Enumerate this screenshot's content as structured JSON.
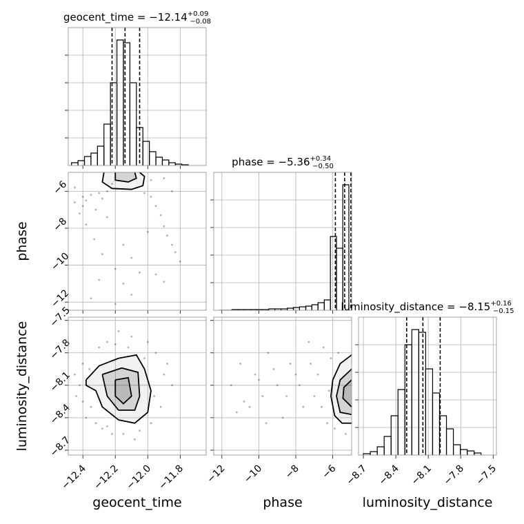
{
  "chart_data": [
    {
      "type": "histogram",
      "title": "geocent_time = −12.14",
      "title_upper": "+0.09",
      "title_lower": "−0.08",
      "xlim": [
        -12.49,
        -11.64
      ],
      "xticks": [
        -12.4,
        -12.2,
        -12.0,
        -11.8
      ],
      "ylim": [
        0,
        200
      ],
      "yticks": [
        40,
        80,
        120,
        160
      ],
      "bins": [
        -12.47,
        -12.43,
        -12.39,
        -12.35,
        -12.31,
        -12.27,
        -12.23,
        -12.19,
        -12.15,
        -12.11,
        -12.07,
        -12.03,
        -11.99,
        -11.95,
        -11.91,
        -11.87,
        -11.83,
        -11.79,
        -11.75
      ],
      "counts": [
        4,
        7,
        13,
        18,
        28,
        60,
        120,
        182,
        178,
        120,
        55,
        35,
        20,
        12,
        8,
        4,
        2,
        1
      ],
      "quantiles": [
        -12.22,
        -12.14,
        -12.05
      ]
    },
    {
      "type": "scatter",
      "xlim": [
        -12.49,
        -11.64
      ],
      "xticks": [
        -12.4,
        -12.2,
        -12.0,
        -11.8
      ],
      "ylim": [
        -12.44,
        -4.98
      ],
      "yticks": [
        {
          "value": -6,
          "label": "−6"
        },
        {
          "value": -8,
          "label": "−8"
        },
        {
          "value": -10,
          "label": "−10"
        },
        {
          "value": -12,
          "label": "−12"
        }
      ],
      "ylabel": "phase",
      "x": [
        -12.45,
        -12.4,
        -12.35,
        -12.3,
        -12.25,
        -12.42,
        -12.38,
        -12.33,
        -12.28,
        -12.2,
        -12.15,
        -12.1,
        -11.98,
        -11.95,
        -11.92,
        -11.9,
        -11.88,
        -11.85,
        -11.83,
        -11.8,
        -11.95,
        -12.3,
        -12.35,
        -12.2,
        -12.0,
        -11.85,
        -12.4,
        -12.25,
        -12.1,
        -11.9,
        -12.28,
        -12.15,
        -12.05,
        -11.98,
        -12.45,
        -12.38,
        -12.32,
        -12.22,
        -12.02,
        -11.9
      ],
      "y": [
        -6.6,
        -6.3,
        -6.2,
        -6.1,
        -6.0,
        -7.2,
        -7.8,
        -8.6,
        -9.4,
        -10.2,
        -11.0,
        -11.6,
        -6.3,
        -6.8,
        -7.3,
        -7.9,
        -8.4,
        -8.9,
        -9.3,
        -9.8,
        -10.5,
        -10.8,
        -11.8,
        -12.1,
        -8.2,
        -6.0,
        -6.8,
        -7.4,
        -9.6,
        -10.9,
        -6.4,
        -8.9,
        -10.4,
        -5.4,
        -5.8,
        -6.5,
        -7.0,
        -5.6,
        -6.1,
        -5.3
      ],
      "contours": [
        {
          "x": [
            -12.27,
            -12.28,
            -12.22,
            -12.1,
            -12.03,
            -12.02,
            -12.05
          ],
          "y": [
            -4.98,
            -5.5,
            -5.85,
            -5.9,
            -5.7,
            -5.2,
            -4.98
          ]
        },
        {
          "x": [
            -12.2,
            -12.2,
            -12.12,
            -12.07,
            -12.08
          ],
          "y": [
            -4.98,
            -5.4,
            -5.5,
            -5.3,
            -4.98
          ]
        }
      ]
    },
    {
      "type": "histogram",
      "title": "phase = −5.36",
      "title_upper": "+0.34",
      "title_lower": "−0.50",
      "xlim": [
        -12.44,
        -4.98
      ],
      "xticks": [
        -12,
        -10,
        -8,
        -6
      ],
      "ylim": [
        0,
        200
      ],
      "yticks": [
        40,
        80,
        120,
        160
      ],
      "bins": [
        -12.13,
        -11.8,
        -11.46,
        -11.13,
        -10.8,
        -10.46,
        -10.13,
        -9.8,
        -9.46,
        -9.13,
        -8.8,
        -8.46,
        -8.13,
        -7.8,
        -7.46,
        -7.13,
        -6.8,
        -6.46,
        -6.13,
        -5.8,
        -5.46,
        -5.13
      ],
      "counts": [
        0,
        0,
        1,
        1,
        1,
        1,
        1,
        1,
        2,
        2,
        2,
        3,
        4,
        5,
        6,
        8,
        11,
        15,
        107,
        90,
        182
      ],
      "quantiles": [
        -5.86,
        -5.36,
        -5.02
      ]
    },
    {
      "type": "scatter",
      "xlim": [
        -12.49,
        -11.64
      ],
      "xticks": [
        {
          "value": -12.4,
          "label": "−12.4"
        },
        {
          "value": -12.2,
          "label": "−12.2"
        },
        {
          "value": -12.0,
          "label": "−12.0"
        },
        {
          "value": -11.8,
          "label": "−11.8"
        }
      ],
      "ylim": [
        -8.745,
        -7.47
      ],
      "yticks": [
        {
          "value": -7.5,
          "label": "−7.5"
        },
        {
          "value": -7.8,
          "label": "−7.8"
        },
        {
          "value": -8.1,
          "label": "−8.1"
        },
        {
          "value": -8.4,
          "label": "−8.4"
        },
        {
          "value": -8.7,
          "label": "−8.7"
        }
      ],
      "xlabel": "geocent_time",
      "ylabel": "luminosity_distance",
      "x": [
        -12.45,
        -12.4,
        -12.35,
        -12.42,
        -12.3,
        -12.25,
        -12.2,
        -12.1,
        -12.0,
        -11.95,
        -11.9,
        -11.85,
        -11.92,
        -12.05,
        -12.15,
        -12.25,
        -12.38,
        -12.44,
        -12.32,
        -12.18,
        -12.08,
        -11.98,
        -11.88,
        -12.28,
        -12.12,
        -12.22,
        -12.02,
        -11.96,
        -12.36,
        -12.4
      ],
      "y": [
        -8.0,
        -7.9,
        -8.3,
        -8.1,
        -7.75,
        -7.7,
        -7.72,
        -7.65,
        -7.7,
        -7.8,
        -8.0,
        -8.1,
        -8.3,
        -8.52,
        -8.55,
        -8.48,
        -8.4,
        -8.2,
        -8.45,
        -7.6,
        -8.6,
        -8.45,
        -7.9,
        -8.5,
        -7.75,
        -8.55,
        -7.85,
        -8.2,
        -7.95,
        -8.25
      ],
      "contours": [
        {
          "x": [
            -12.38,
            -12.3,
            -12.18,
            -12.07,
            -12.02,
            -11.98,
            -12.0,
            -12.08,
            -12.18,
            -12.28,
            -12.32,
            -12.38,
            -12.38
          ],
          "y": [
            -8.05,
            -7.92,
            -7.85,
            -7.82,
            -7.95,
            -8.15,
            -8.35,
            -8.45,
            -8.42,
            -8.3,
            -8.15,
            -8.1,
            -8.05
          ]
        },
        {
          "x": [
            -12.28,
            -12.16,
            -12.06,
            -12.05,
            -12.08,
            -12.18,
            -12.25,
            -12.28
          ],
          "y": [
            -8.0,
            -7.94,
            -7.98,
            -8.2,
            -8.33,
            -8.33,
            -8.2,
            -8.0
          ]
        },
        {
          "x": [
            -12.2,
            -12.12,
            -12.1,
            -12.15,
            -12.2,
            -12.2
          ],
          "y": [
            -8.05,
            -8.03,
            -8.2,
            -8.27,
            -8.2,
            -8.05
          ]
        }
      ]
    },
    {
      "type": "scatter",
      "xlim": [
        -12.44,
        -4.98
      ],
      "xticks": [
        {
          "value": -12,
          "label": "−12"
        },
        {
          "value": -10,
          "label": "−10"
        },
        {
          "value": -8,
          "label": "−8"
        },
        {
          "value": -6,
          "label": "−6"
        }
      ],
      "ylim": [
        -8.745,
        -7.47
      ],
      "yticks": [
        -7.5,
        -7.8,
        -8.1,
        -8.4,
        -8.7
      ],
      "xlabel": "phase",
      "x": [
        -11.5,
        -11.0,
        -10.5,
        -10.2,
        -9.8,
        -9.5,
        -9.0,
        -8.7,
        -8.3,
        -8.0,
        -7.6,
        -7.3,
        -7.0,
        -6.8,
        -6.5,
        -6.3,
        -6.1,
        -5.9,
        -11.2,
        -10.0,
        -9.2,
        -8.5,
        -7.8,
        -7.2,
        -6.6,
        -6.2,
        -5.7,
        -5.3,
        -10.8,
        -9.6
      ],
      "y": [
        -8.1,
        -7.9,
        -8.3,
        -8.0,
        -8.2,
        -7.8,
        -8.1,
        -8.4,
        -7.9,
        -8.0,
        -8.3,
        -7.7,
        -8.2,
        -8.0,
        -7.75,
        -8.45,
        -7.85,
        -8.5,
        -8.35,
        -8.05,
        -7.95,
        -8.2,
        -8.1,
        -7.9,
        -8.3,
        -8.15,
        -7.8,
        -8.55,
        -8.25,
        -8.45
      ],
      "contours": [
        {
          "x": [
            -4.98,
            -5.6,
            -6.0,
            -6.1,
            -5.9,
            -5.5,
            -4.98
          ],
          "y": [
            -7.82,
            -7.9,
            -8.05,
            -8.2,
            -8.38,
            -8.45,
            -8.45
          ]
        },
        {
          "x": [
            -4.98,
            -5.6,
            -5.8,
            -5.6,
            -4.98
          ],
          "y": [
            -7.95,
            -8.05,
            -8.2,
            -8.35,
            -8.37
          ]
        },
        {
          "x": [
            -4.98,
            -5.4,
            -5.45,
            -4.98
          ],
          "y": [
            -8.05,
            -8.12,
            -8.22,
            -8.3
          ]
        }
      ]
    },
    {
      "type": "histogram",
      "title": "luminosity_distance = −8.15",
      "title_upper": "+0.16",
      "title_lower": "−0.15",
      "xlim": [
        -8.745,
        -7.47
      ],
      "xticks": [
        {
          "value": -8.7,
          "label": "−8.7"
        },
        {
          "value": -8.4,
          "label": "−8.4"
        },
        {
          "value": -8.1,
          "label": "−8.1"
        },
        {
          "value": -7.8,
          "label": "−7.8"
        },
        {
          "value": -7.5,
          "label": "−7.5"
        }
      ],
      "ylim": [
        0,
        200
      ],
      "yticks": [
        40,
        80,
        120,
        160
      ],
      "xlabel": "luminosity_distance",
      "bins": [
        -8.7,
        -8.636,
        -8.572,
        -8.508,
        -8.444,
        -8.38,
        -8.316,
        -8.252,
        -8.188,
        -8.124,
        -8.06,
        -7.996,
        -7.932,
        -7.868,
        -7.804,
        -7.74,
        -7.676,
        -7.612
      ],
      "counts": [
        2,
        5,
        12,
        27,
        57,
        95,
        160,
        182,
        178,
        125,
        90,
        57,
        38,
        15,
        8,
        6,
        3
      ],
      "quantiles": [
        -8.3,
        -8.15,
        -7.99
      ]
    }
  ]
}
